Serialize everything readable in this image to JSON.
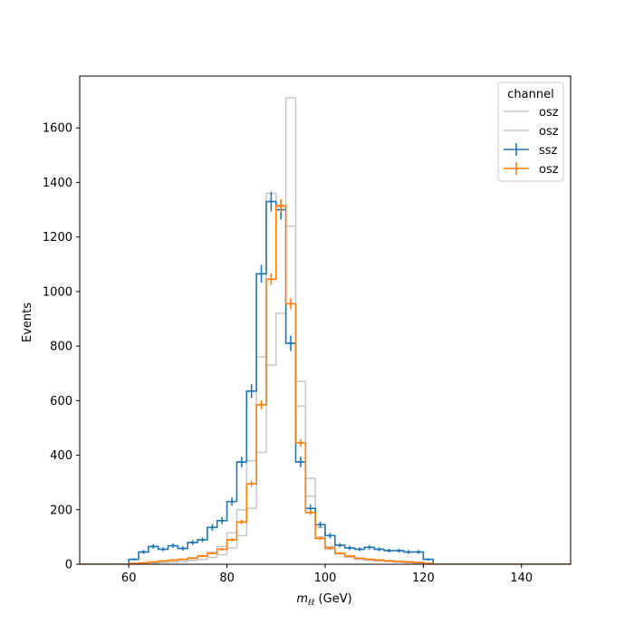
{
  "chart_data": {
    "type": "line",
    "xlabel": "m",
    "xlabel_sub": "ℓℓ",
    "xlabel_unit": " (GeV)",
    "ylabel": "Events",
    "xlim": [
      50,
      150
    ],
    "ylim": [
      0,
      1790
    ],
    "x_ticks": [
      60,
      80,
      100,
      120,
      140
    ],
    "y_ticks": [
      0,
      200,
      400,
      600,
      800,
      1000,
      1200,
      1400,
      1600
    ],
    "legend_title": "channel",
    "legend_position": "upper right",
    "colors": {
      "gray": "#d3d3d3",
      "blue": "#1f77b4",
      "orange": "#ff7f0e"
    },
    "series": [
      {
        "name": "osz",
        "style": "step",
        "color": "#c8c8c8",
        "bin_start": 60,
        "bin_width": 2,
        "values": [
          0,
          2,
          4,
          6,
          8,
          10,
          14,
          18,
          25,
          35,
          60,
          105,
          205,
          410,
          730,
          920,
          1710,
          670,
          315,
          135,
          65,
          38,
          25,
          18,
          14,
          12,
          10,
          8,
          6,
          4,
          2
        ]
      },
      {
        "name": "osz",
        "style": "step",
        "color": "#c8c8c8",
        "bin_start": 60,
        "bin_width": 2,
        "values": [
          2,
          4,
          6,
          10,
          14,
          18,
          24,
          32,
          45,
          65,
          115,
          200,
          380,
          760,
          1360,
          1310,
          1240,
          580,
          250,
          100,
          55,
          38,
          28,
          22,
          18,
          16,
          14,
          12,
          10,
          8,
          4
        ]
      },
      {
        "name": "ssz",
        "style": "errorbar-step",
        "color": "#1f77b4",
        "bin_start": 60,
        "bin_width": 2,
        "values": [
          18,
          45,
          65,
          55,
          68,
          58,
          80,
          90,
          135,
          160,
          230,
          375,
          635,
          1065,
          1330,
          1300,
          810,
          375,
          205,
          145,
          105,
          70,
          60,
          55,
          62,
          55,
          50,
          50,
          45,
          45,
          18
        ],
        "errors": [
          4,
          7,
          8,
          7,
          8,
          8,
          9,
          9,
          12,
          13,
          15,
          19,
          25,
          33,
          36,
          36,
          28,
          19,
          14,
          12,
          10,
          8,
          8,
          7,
          8,
          7,
          7,
          7,
          7,
          7,
          4
        ]
      },
      {
        "name": "osz",
        "style": "errorbar-step",
        "color": "#ff7f0e",
        "bin_start": 60,
        "bin_width": 2,
        "values": [
          3,
          5,
          8,
          12,
          15,
          18,
          22,
          30,
          40,
          55,
          90,
          155,
          295,
          585,
          1045,
          1315,
          955,
          445,
          190,
          95,
          60,
          40,
          30,
          22,
          18,
          15,
          12,
          10,
          8,
          6,
          3
        ],
        "errors": [
          1,
          2,
          2,
          2,
          3,
          3,
          3,
          4,
          4,
          5,
          6,
          8,
          11,
          16,
          21,
          24,
          20,
          14,
          9,
          7,
          5,
          4,
          4,
          3,
          3,
          3,
          2,
          2,
          2,
          2,
          1
        ]
      }
    ]
  }
}
